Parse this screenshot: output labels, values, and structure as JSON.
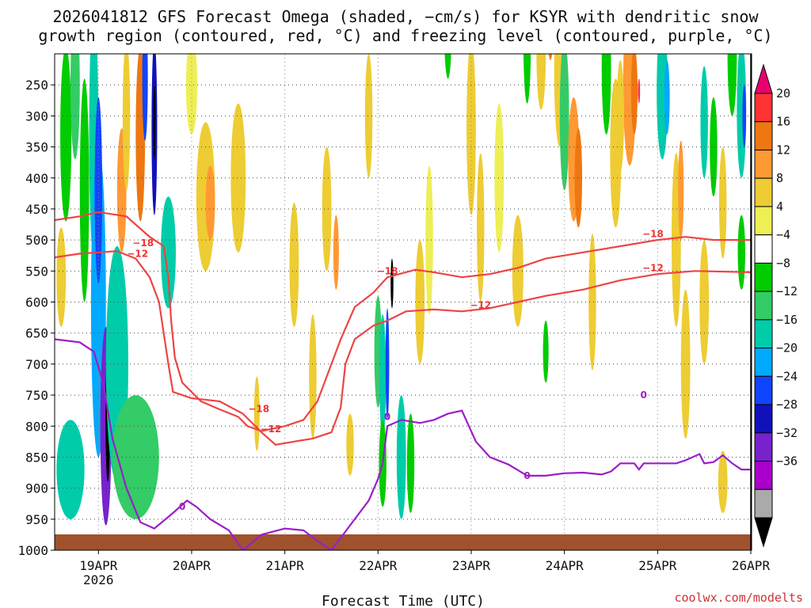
{
  "chart_data": {
    "type": "heatmap",
    "title_lines": [
      "2026041812 GFS Forecast Omega (shaded, −cm/s) for KSYR with dendritic snow",
      "growth region (contoured, red, °C) and freezing level (contoured, purple, °C)"
    ],
    "xlabel": "Forecast Time (UTC)",
    "credit": "coolwx.com/modelts",
    "x_ticks": [
      "19APR",
      "20APR",
      "21APR",
      "22APR",
      "23APR",
      "24APR",
      "25APR",
      "26APR"
    ],
    "x_year": "2026",
    "y_ticks": [
      "250",
      "300",
      "350",
      "400",
      "450",
      "500",
      "550",
      "600",
      "650",
      "700",
      "750",
      "800",
      "850",
      "900",
      "950",
      "1000"
    ],
    "y_range_hpa": [
      200,
      1000
    ],
    "x_range_days_from_19apr00z": [
      -0.47,
      7.0
    ],
    "grid": true,
    "colorbar": {
      "levels": [
        "20",
        "16",
        "12",
        "8",
        "4",
        "−4",
        "−8",
        "−12",
        "−16",
        "−20",
        "−24",
        "−28",
        "−32",
        "−36"
      ],
      "colors": [
        "#e8006f",
        "#ff3333",
        "#ee7711",
        "#ff9933",
        "#eecc33",
        "#eeee55",
        "#ffffff",
        "#00cc00",
        "#33cc66",
        "#00ccaa",
        "#00aaff",
        "#1144ff",
        "#1111bb",
        "#7722cc",
        "#aa00cc",
        "#aaaaaa",
        "#000000"
      ]
    },
    "series": [
      {
        "label": "−18",
        "color": "#ee4444",
        "points": [
          [
            -0.47,
            468
          ],
          [
            -0.2,
            462
          ],
          [
            0.0,
            455
          ],
          [
            0.3,
            462
          ],
          [
            0.55,
            495
          ],
          [
            0.7,
            510
          ],
          [
            0.75,
            560
          ],
          [
            0.78,
            630
          ],
          [
            0.82,
            690
          ],
          [
            0.9,
            730
          ],
          [
            1.1,
            760
          ],
          [
            1.3,
            773
          ],
          [
            1.5,
            785
          ],
          [
            1.6,
            800
          ],
          [
            1.75,
            808
          ],
          [
            2.0,
            800
          ],
          [
            2.2,
            790
          ],
          [
            2.35,
            760
          ],
          [
            2.45,
            720
          ],
          [
            2.6,
            660
          ],
          [
            2.75,
            608
          ],
          [
            2.95,
            585
          ],
          [
            3.1,
            560
          ],
          [
            3.4,
            548
          ],
          [
            3.6,
            552
          ],
          [
            3.9,
            560
          ],
          [
            4.2,
            555
          ],
          [
            4.5,
            545
          ],
          [
            4.8,
            530
          ],
          [
            5.2,
            520
          ],
          [
            5.6,
            510
          ],
          [
            6.0,
            500
          ],
          [
            6.3,
            495
          ],
          [
            6.6,
            500
          ],
          [
            7.0,
            500
          ]
        ]
      },
      {
        "label": "−12",
        "color": "#ee4444",
        "points": [
          [
            -0.47,
            528
          ],
          [
            -0.2,
            522
          ],
          [
            0.0,
            520
          ],
          [
            0.2,
            518
          ],
          [
            0.4,
            530
          ],
          [
            0.55,
            560
          ],
          [
            0.65,
            600
          ],
          [
            0.7,
            650
          ],
          [
            0.75,
            700
          ],
          [
            0.8,
            745
          ],
          [
            1.0,
            755
          ],
          [
            1.3,
            760
          ],
          [
            1.55,
            780
          ],
          [
            1.75,
            810
          ],
          [
            1.9,
            830
          ],
          [
            2.1,
            825
          ],
          [
            2.3,
            820
          ],
          [
            2.5,
            810
          ],
          [
            2.6,
            770
          ],
          [
            2.65,
            700
          ],
          [
            2.75,
            660
          ],
          [
            2.95,
            638
          ],
          [
            3.1,
            630
          ],
          [
            3.3,
            615
          ],
          [
            3.6,
            612
          ],
          [
            3.9,
            615
          ],
          [
            4.2,
            610
          ],
          [
            4.5,
            600
          ],
          [
            4.8,
            590
          ],
          [
            5.2,
            580
          ],
          [
            5.6,
            565
          ],
          [
            6.0,
            555
          ],
          [
            6.4,
            550
          ],
          [
            7.0,
            552
          ]
        ]
      },
      {
        "label": "0",
        "color": "#9b1ec8",
        "points": [
          [
            -0.47,
            660
          ],
          [
            -0.2,
            665
          ],
          [
            -0.05,
            680
          ],
          [
            0.05,
            730
          ],
          [
            0.15,
            820
          ],
          [
            0.3,
            900
          ],
          [
            0.45,
            955
          ],
          [
            0.6,
            965
          ],
          [
            0.8,
            940
          ],
          [
            0.95,
            920
          ],
          [
            1.05,
            930
          ],
          [
            1.2,
            950
          ],
          [
            1.4,
            968
          ],
          [
            1.55,
            1000
          ],
          [
            1.75,
            975
          ],
          [
            2.0,
            965
          ],
          [
            2.2,
            968
          ],
          [
            2.35,
            985
          ],
          [
            2.5,
            1000
          ],
          [
            2.7,
            960
          ],
          [
            2.9,
            920
          ],
          [
            3.0,
            885
          ],
          [
            3.05,
            860
          ],
          [
            3.1,
            800
          ],
          [
            3.25,
            790
          ],
          [
            3.45,
            795
          ],
          [
            3.6,
            790
          ],
          [
            3.75,
            780
          ],
          [
            3.9,
            775
          ],
          [
            4.05,
            825
          ],
          [
            4.2,
            850
          ],
          [
            4.4,
            862
          ],
          [
            4.6,
            880
          ],
          [
            4.8,
            880
          ],
          [
            5.0,
            876
          ],
          [
            5.2,
            875
          ],
          [
            5.4,
            878
          ],
          [
            5.5,
            873
          ],
          [
            5.6,
            860
          ],
          [
            5.75,
            860
          ],
          [
            5.8,
            870
          ],
          [
            5.85,
            860
          ],
          [
            6.0,
            860
          ],
          [
            6.2,
            860
          ],
          [
            6.3,
            855
          ],
          [
            6.45,
            845
          ],
          [
            6.5,
            860
          ],
          [
            6.6,
            858
          ],
          [
            6.7,
            847
          ],
          [
            6.8,
            860
          ],
          [
            6.9,
            870
          ],
          [
            7.0,
            870
          ]
        ]
      }
    ]
  }
}
